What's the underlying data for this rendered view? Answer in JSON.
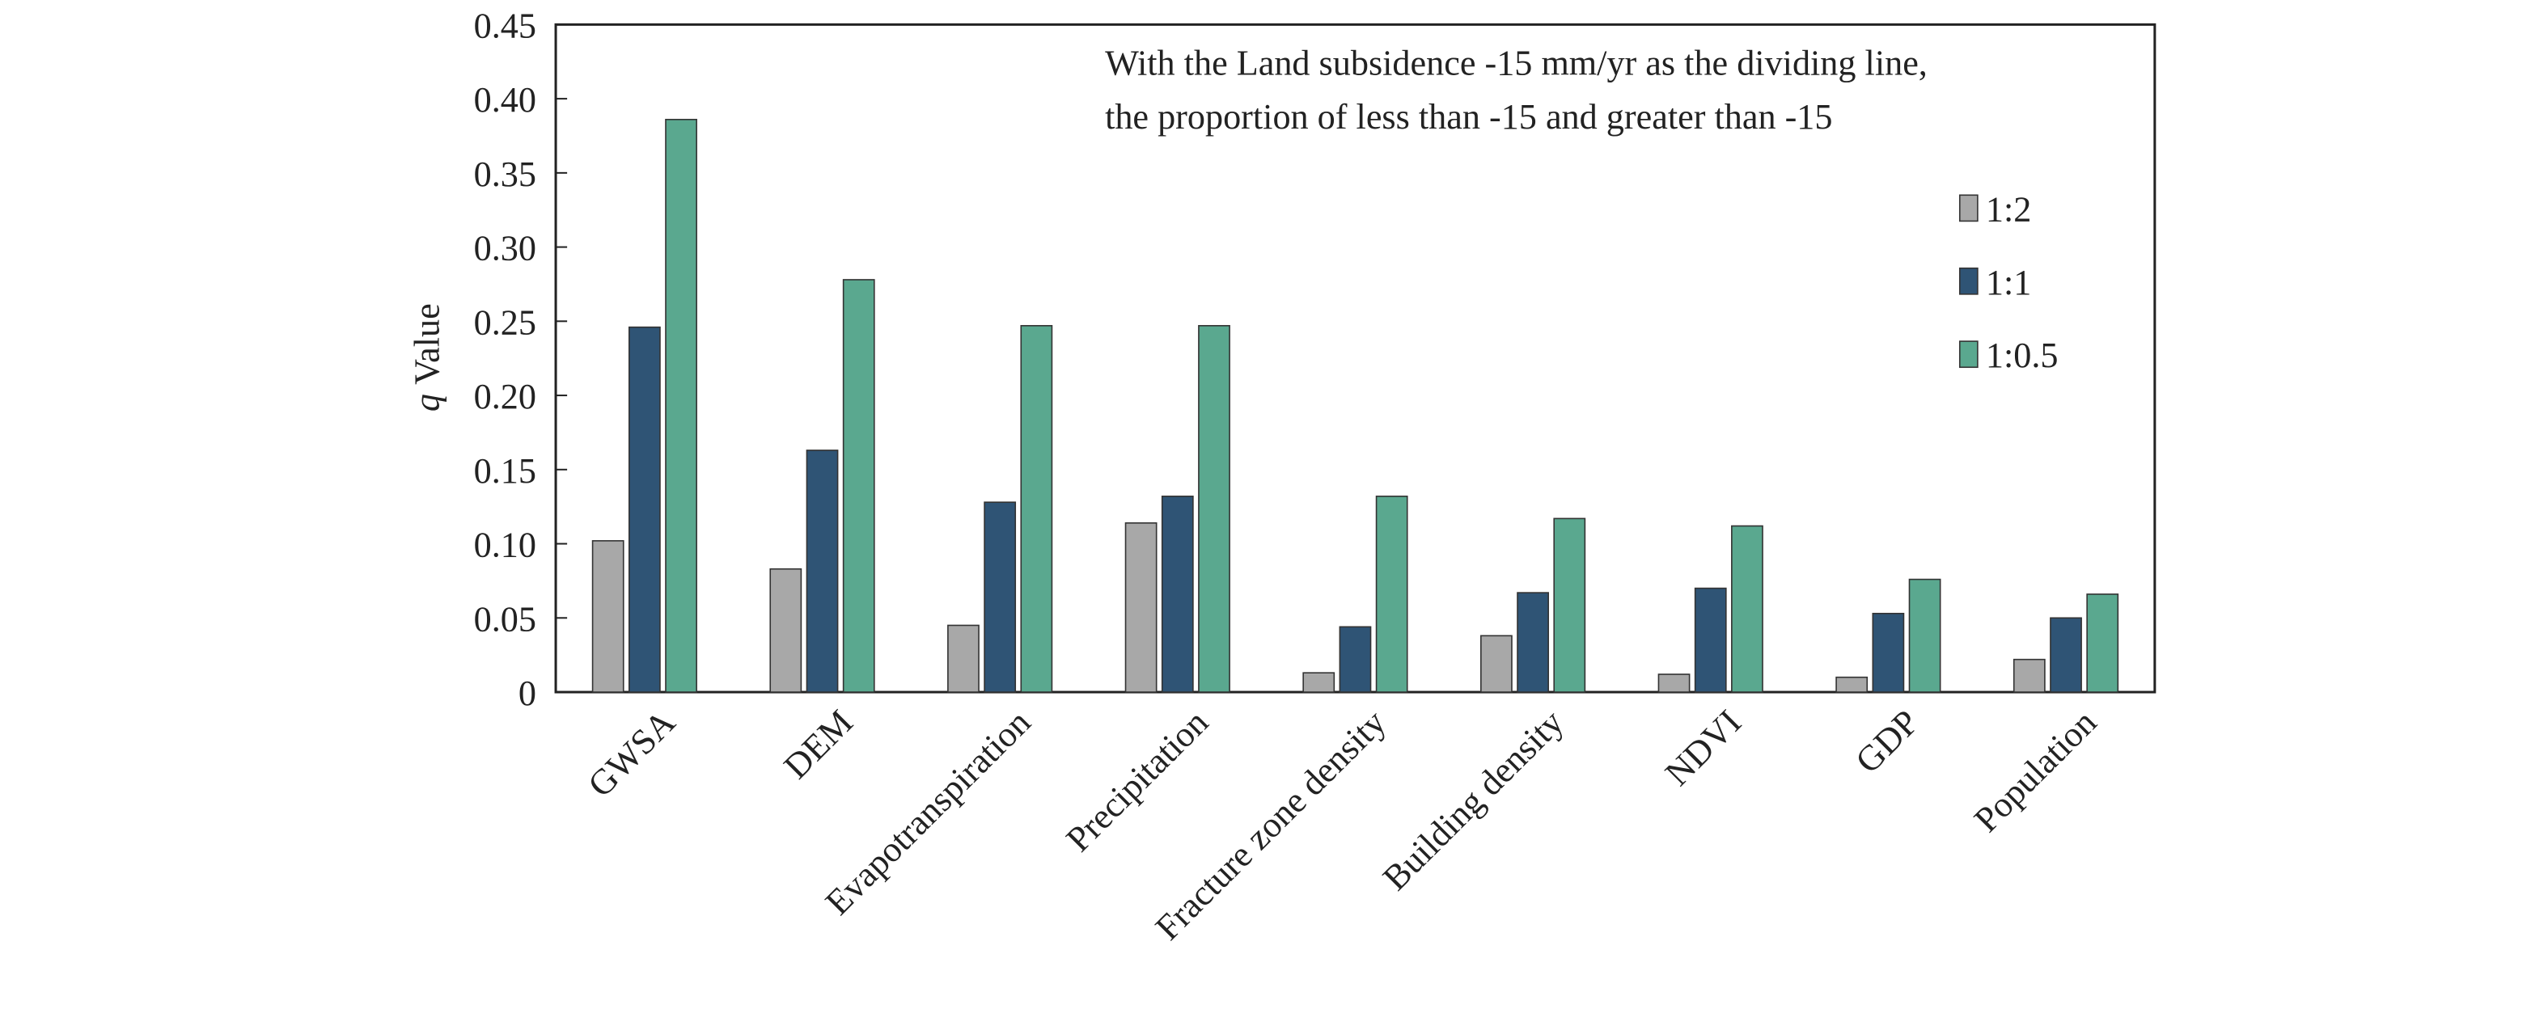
{
  "chart_data": {
    "type": "bar",
    "annotation_lines": [
      "With the Land subsidence -15 mm/yr as the dividing line,",
      "the proportion of less than -15 and greater than -15"
    ],
    "ylabel_symbol": "q",
    "ylabel": "Value",
    "categories": [
      "GWSA",
      "DEM",
      "Evapotranspiration",
      "Precipitation",
      "Fracture zone density",
      "Building density",
      "NDVI",
      "GDP",
      "Population"
    ],
    "series": [
      {
        "name": "1:2",
        "color": "#a8a8a8",
        "values": [
          0.102,
          0.083,
          0.045,
          0.114,
          0.013,
          0.038,
          0.012,
          0.01,
          0.022
        ]
      },
      {
        "name": "1:1",
        "color": "#2f5475",
        "values": [
          0.246,
          0.163,
          0.128,
          0.132,
          0.044,
          0.067,
          0.07,
          0.053,
          0.05
        ]
      },
      {
        "name": "1:0.5",
        "color": "#5aa88f",
        "values": [
          0.386,
          0.278,
          0.247,
          0.247,
          0.132,
          0.117,
          0.112,
          0.076,
          0.066
        ]
      }
    ],
    "ylim": [
      0,
      0.45
    ],
    "yticks": [
      0,
      0.05,
      {
        "value": 0.1,
        "label": "0.10"
      },
      0.15,
      {
        "value": 0.2,
        "label": "0.20"
      },
      0.25,
      {
        "value": 0.3,
        "label": "0.30"
      },
      0.35,
      {
        "value": 0.4,
        "label": "0.40"
      },
      0.45
    ],
    "legend": "upper right"
  }
}
